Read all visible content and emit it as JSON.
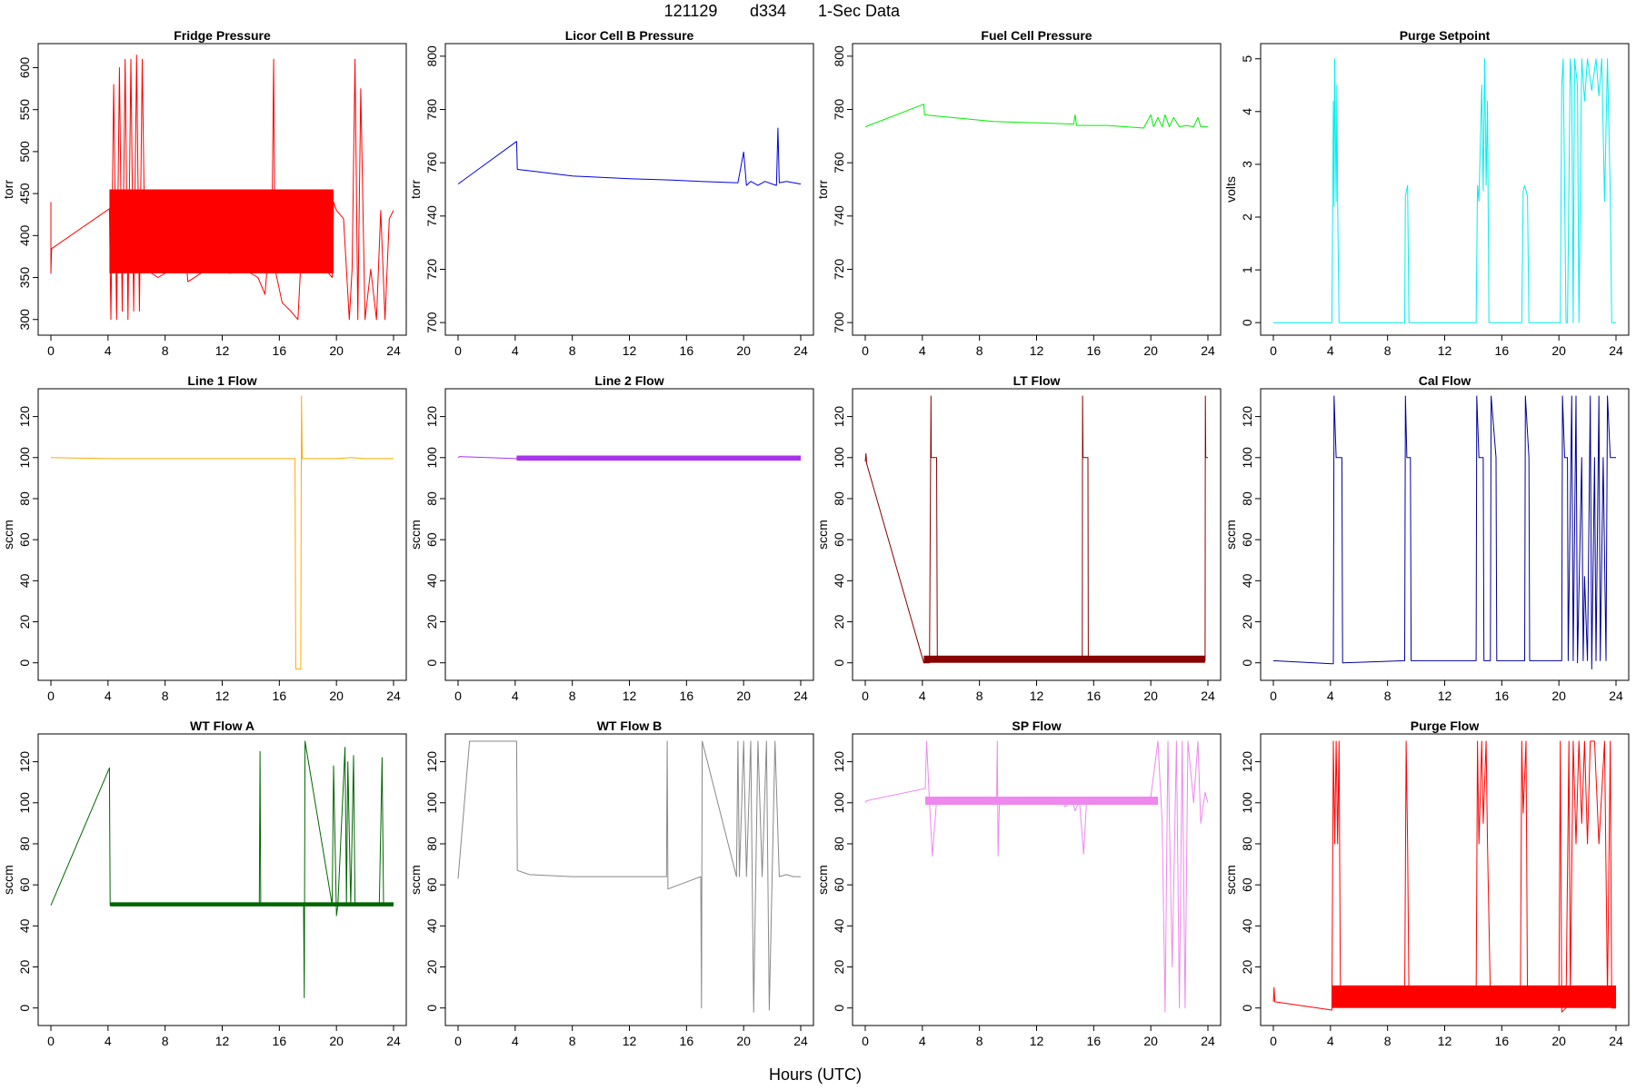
{
  "figure": {
    "title_parts": [
      "121129",
      "d334",
      "1-Sec Data"
    ],
    "xlabel": "Hours (UTC)"
  },
  "chart_data": [
    {
      "type": "line",
      "title": "Fridge Pressure",
      "ylabel": "torr",
      "color": "#ff0000",
      "xlim": [
        0,
        24
      ],
      "ylim": [
        290,
        620
      ],
      "xticks": [
        0,
        4,
        8,
        12,
        16,
        20,
        24
      ],
      "yticks": [
        300,
        350,
        400,
        450,
        500,
        550,
        600
      ],
      "x": [
        0,
        0,
        0.05,
        0.1,
        4.1,
        4.2,
        4.4,
        4.6,
        4.8,
        5.0,
        5.2,
        5.4,
        5.6,
        5.8,
        6.0,
        6.2,
        6.4,
        6.6,
        7.5,
        8.5,
        9.4,
        9.6,
        10.5,
        11.5,
        12.5,
        13.5,
        14.5,
        15.0,
        15.5,
        15.6,
        15.7,
        16.2,
        16.8,
        17.3,
        17.6,
        18.0,
        18.6,
        19.2,
        19.7,
        19.8,
        20.0,
        20.5,
        20.9,
        21.1,
        21.3,
        21.5,
        21.7,
        22.0,
        22.4,
        22.8,
        23.1,
        23.4,
        23.7,
        24.0
      ],
      "y": [
        440,
        355,
        385,
        385,
        432,
        300,
        580,
        300,
        600,
        310,
        610,
        300,
        610,
        310,
        615,
        310,
        610,
        360,
        350,
        360,
        380,
        345,
        355,
        360,
        355,
        360,
        350,
        330,
        440,
        610,
        360,
        320,
        310,
        300,
        400,
        360,
        360,
        360,
        350,
        440,
        430,
        420,
        300,
        360,
        610,
        300,
        575,
        300,
        360,
        300,
        430,
        300,
        420,
        430
      ],
      "band": {
        "from": 4.1,
        "to": 19.8,
        "low": 355,
        "high": 455
      }
    },
    {
      "type": "line",
      "title": "Licor Cell B Pressure",
      "ylabel": "torr",
      "color": "#0000dd",
      "xlim": [
        0,
        24
      ],
      "ylim": [
        698,
        802
      ],
      "xticks": [
        0,
        4,
        8,
        12,
        16,
        20,
        24
      ],
      "yticks": [
        700,
        720,
        740,
        760,
        780,
        800
      ],
      "x": [
        0,
        4.1,
        4.15,
        5,
        8,
        12,
        15,
        17,
        19.6,
        20.0,
        20.2,
        20.5,
        21,
        21.5,
        22,
        22.3,
        22.4,
        22.5,
        23,
        24
      ],
      "y": [
        752,
        768,
        757.5,
        757,
        755,
        754,
        753.5,
        753,
        752.5,
        764,
        751.5,
        753,
        751.5,
        753,
        752,
        751.5,
        773,
        752.5,
        753,
        752
      ]
    },
    {
      "type": "line",
      "title": "Fuel Cell Pressure",
      "ylabel": "torr",
      "color": "#00ee00",
      "xlim": [
        0,
        24
      ],
      "ylim": [
        698,
        802
      ],
      "xticks": [
        0,
        4,
        8,
        12,
        16,
        20,
        24
      ],
      "yticks": [
        700,
        720,
        740,
        760,
        780,
        800
      ],
      "x": [
        0,
        4.1,
        4.15,
        6,
        9,
        12,
        14.6,
        14.7,
        14.8,
        17,
        19.5,
        20.0,
        20.2,
        20.5,
        20.8,
        21,
        21.3,
        21.6,
        22,
        22.5,
        23,
        23.3,
        23.5,
        24
      ],
      "y": [
        773.5,
        782,
        778,
        777,
        775.5,
        775,
        774.5,
        778,
        774,
        774,
        773,
        778,
        773.5,
        777,
        773.5,
        778,
        773.5,
        777,
        773.5,
        774,
        773.5,
        777,
        773.5,
        773.5
      ]
    },
    {
      "type": "line",
      "title": "Purge Setpoint",
      "ylabel": "volts",
      "color": "#00eeee",
      "xlim": [
        0,
        24
      ],
      "ylim": [
        -0.1,
        5.15
      ],
      "xticks": [
        0,
        4,
        8,
        12,
        16,
        20,
        24
      ],
      "yticks": [
        0,
        1,
        2,
        3,
        4,
        5
      ],
      "x": [
        0,
        4.1,
        4.2,
        4.25,
        4.3,
        4.4,
        4.45,
        4.5,
        4.6,
        4.7,
        9.2,
        9.25,
        9.4,
        9.5,
        14.2,
        14.3,
        14.4,
        14.6,
        14.7,
        14.8,
        14.9,
        15.0,
        15.1,
        17.4,
        17.5,
        17.6,
        17.8,
        17.9,
        20.1,
        20.2,
        20.3,
        20.5,
        20.6,
        20.8,
        20.9,
        21.0,
        21.1,
        21.3,
        21.4,
        21.6,
        21.8,
        22.0,
        22.3,
        22.6,
        22.8,
        23.0,
        23.2,
        23.4,
        23.6,
        23.7,
        24
      ],
      "y": [
        0,
        0,
        4.2,
        2.2,
        5,
        2.3,
        4.5,
        2.3,
        0,
        0,
        0,
        2.4,
        2.6,
        0,
        0,
        2.6,
        2.3,
        4.5,
        2.5,
        5,
        2.6,
        4.2,
        0,
        0,
        2.5,
        2.6,
        2.4,
        0,
        0,
        4.5,
        5,
        0,
        0,
        5,
        4.5,
        0,
        5,
        4.5,
        0,
        5,
        4.2,
        5,
        4.4,
        5,
        4.3,
        5,
        2.3,
        5,
        2.4,
        0,
        0
      ]
    },
    {
      "type": "line",
      "title": "Line 1 Flow",
      "ylabel": "sccm",
      "color": "#ffaa00",
      "xlim": [
        0,
        24
      ],
      "ylim": [
        -5,
        130
      ],
      "xticks": [
        0,
        4,
        8,
        12,
        16,
        20,
        24
      ],
      "yticks": [
        0,
        20,
        40,
        60,
        80,
        100,
        120
      ],
      "x": [
        0,
        4,
        8,
        12,
        16,
        17.1,
        17.15,
        17.5,
        17.55,
        17.6,
        17.65,
        20,
        21,
        22,
        24
      ],
      "y": [
        100,
        99.5,
        99.5,
        99.5,
        99.5,
        99.5,
        -3,
        -3,
        130,
        99.5,
        99.5,
        99.5,
        100,
        99.5,
        99.5
      ]
    },
    {
      "type": "line",
      "title": "Line 2 Flow",
      "ylabel": "sccm",
      "color": "#aa33ee",
      "xlim": [
        0,
        24
      ],
      "ylim": [
        -5,
        130
      ],
      "xticks": [
        0,
        4,
        8,
        12,
        16,
        20,
        24
      ],
      "yticks": [
        0,
        20,
        40,
        60,
        80,
        100,
        120
      ],
      "x": [
        0,
        0.1,
        4.1,
        8,
        12,
        16,
        20,
        24
      ],
      "y": [
        100,
        100.5,
        99.5,
        99.8,
        99.8,
        99.8,
        99.8,
        99.8
      ],
      "band": {
        "from": 4.1,
        "to": 24,
        "low": 98.5,
        "high": 101
      }
    },
    {
      "type": "line",
      "title": "LT Flow",
      "ylabel": "sccm",
      "color": "#880000",
      "xlim": [
        0,
        24
      ],
      "ylim": [
        -5,
        130
      ],
      "xticks": [
        0,
        4,
        8,
        12,
        16,
        20,
        24
      ],
      "yticks": [
        0,
        20,
        40,
        60,
        80,
        100,
        120
      ],
      "x": [
        0,
        0.05,
        0.1,
        4.1,
        4.5,
        4.6,
        4.62,
        5.0,
        5.05,
        15.2,
        15.22,
        15.25,
        15.6,
        15.62,
        23.8,
        23.82,
        23.85,
        24
      ],
      "y": [
        98,
        102,
        97,
        0,
        0,
        130,
        100,
        100,
        1,
        1,
        130,
        100,
        100,
        1,
        1,
        130,
        100,
        100
      ],
      "band": {
        "from": 4.1,
        "to": 23.8,
        "low": 0,
        "high": 3.5
      }
    },
    {
      "type": "line",
      "title": "Cal Flow",
      "ylabel": "sccm",
      "color": "#000099",
      "xlim": [
        0,
        24
      ],
      "ylim": [
        -5,
        130
      ],
      "xticks": [
        0,
        4,
        8,
        12,
        16,
        20,
        24
      ],
      "yticks": [
        0,
        20,
        40,
        60,
        80,
        100,
        120
      ],
      "x": [
        0,
        4.1,
        4.2,
        4.25,
        4.4,
        4.5,
        4.8,
        4.85,
        9.2,
        9.25,
        9.35,
        9.6,
        9.65,
        14.2,
        14.25,
        14.4,
        14.7,
        14.75,
        15.2,
        15.25,
        15.6,
        15.65,
        17.6,
        17.65,
        17.9,
        17.95,
        20.2,
        20.25,
        20.4,
        20.6,
        20.65,
        20.9,
        21.0,
        21.2,
        21.3,
        21.6,
        21.7,
        21.8,
        22.0,
        22.2,
        22.3,
        22.5,
        22.6,
        22.8,
        22.9,
        23.1,
        23.3,
        23.4,
        23.6,
        23.7,
        24
      ],
      "y": [
        1,
        -0.5,
        -0.5,
        130,
        100,
        100,
        100,
        0,
        1,
        130,
        100,
        100,
        1,
        1,
        130,
        100,
        100,
        1,
        1,
        130,
        100,
        1,
        1,
        130,
        100,
        1,
        1,
        130,
        100,
        100,
        1,
        130,
        1,
        130,
        0,
        100,
        1,
        42,
        1,
        130,
        -3,
        100,
        1,
        130,
        1,
        100,
        1,
        130,
        100,
        100,
        100
      ]
    },
    {
      "type": "line",
      "title": "WT Flow A",
      "ylabel": "sccm",
      "color": "#006600",
      "xlim": [
        0,
        24
      ],
      "ylim": [
        -5,
        130
      ],
      "xticks": [
        0,
        4,
        8,
        12,
        16,
        20,
        24
      ],
      "yticks": [
        0,
        20,
        40,
        60,
        80,
        100,
        120
      ],
      "x": [
        0,
        4.1,
        4.15,
        8,
        12,
        14.6,
        14.65,
        14.7,
        17.7,
        17.75,
        17.8,
        19.7,
        19.8,
        20.0,
        20.1,
        20.6,
        20.7,
        20.8,
        21.0,
        21.2,
        21.3,
        21.5,
        22.0,
        23.0,
        23.2,
        23.3,
        24
      ],
      "y": [
        50,
        117,
        50,
        50.5,
        50,
        50,
        125,
        50,
        50,
        5,
        130,
        50,
        118,
        45,
        50,
        127,
        50,
        120,
        50,
        123,
        50,
        51,
        50,
        50,
        122,
        50,
        50
      ],
      "band": {
        "from": 4.15,
        "to": 24,
        "low": 49.5,
        "high": 51.5
      }
    },
    {
      "type": "line",
      "title": "WT Flow B",
      "ylabel": "sccm",
      "color": "#888888",
      "xlim": [
        0,
        24
      ],
      "ylim": [
        -5,
        130
      ],
      "xticks": [
        0,
        4,
        8,
        12,
        16,
        20,
        24
      ],
      "yticks": [
        0,
        20,
        40,
        60,
        80,
        100,
        120
      ],
      "x": [
        0,
        0.8,
        4.1,
        4.15,
        5,
        8,
        12,
        14.6,
        14.65,
        14.7,
        17.0,
        17.05,
        17.1,
        19.5,
        19.6,
        19.7,
        20.0,
        20.2,
        20.5,
        20.7,
        21.0,
        21.3,
        21.6,
        21.8,
        22.2,
        22.5,
        23.0,
        23.5,
        24
      ],
      "y": [
        63,
        130,
        130,
        67,
        65,
        64,
        64,
        64,
        130,
        58,
        64,
        0,
        130,
        64,
        130,
        64,
        130,
        64,
        130,
        -2,
        130,
        64,
        130,
        -1,
        130,
        64,
        65,
        64,
        64
      ]
    },
    {
      "type": "line",
      "title": "SP Flow",
      "ylabel": "sccm",
      "color": "#ee88ee",
      "xlim": [
        0,
        24
      ],
      "ylim": [
        -5,
        130
      ],
      "xticks": [
        0,
        4,
        8,
        12,
        16,
        20,
        24
      ],
      "yticks": [
        0,
        20,
        40,
        60,
        80,
        100,
        120
      ],
      "x": [
        0,
        0.1,
        4.2,
        4.3,
        4.5,
        4.7,
        5,
        8,
        9.2,
        9.25,
        9.3,
        9.4,
        12,
        13.8,
        14.0,
        14.5,
        14.7,
        15.0,
        15.3,
        15.5,
        16,
        18.0,
        19.5,
        20.0,
        20.5,
        20.8,
        21.0,
        21.2,
        21.5,
        21.8,
        22.0,
        22.2,
        22.4,
        22.6,
        23.0,
        23.3,
        23.5,
        23.8,
        24
      ],
      "y": [
        100,
        101,
        107,
        130,
        100,
        74,
        101,
        101,
        101,
        130,
        74,
        101,
        101,
        101,
        98,
        101,
        96,
        101,
        75,
        101,
        101,
        101,
        102,
        103,
        130,
        90,
        -2,
        130,
        20,
        130,
        0,
        130,
        0,
        130,
        100,
        130,
        90,
        105,
        100
      ],
      "band": {
        "from": 4.2,
        "to": 20.5,
        "low": 99,
        "high": 103
      }
    },
    {
      "type": "line",
      "title": "Purge Flow",
      "ylabel": "sccm",
      "color": "#ff0000",
      "xlim": [
        0,
        24
      ],
      "ylim": [
        -5,
        130
      ],
      "xticks": [
        0,
        4,
        8,
        12,
        16,
        20,
        24
      ],
      "yticks": [
        0,
        20,
        40,
        60,
        80,
        100,
        120
      ],
      "x": [
        0,
        0.05,
        0.1,
        4.1,
        4.2,
        4.3,
        4.4,
        4.5,
        4.6,
        4.7,
        9.2,
        9.3,
        9.4,
        9.5,
        14.2,
        14.3,
        14.4,
        14.6,
        14.7,
        14.9,
        15.0,
        15.2,
        17.3,
        17.4,
        17.5,
        17.7,
        17.8,
        20.0,
        20.1,
        20.2,
        20.5,
        20.7,
        20.8,
        21.0,
        21.2,
        21.4,
        21.6,
        21.8,
        22.0,
        22.2,
        22.5,
        22.8,
        23.2,
        23.4,
        23.6,
        23.7,
        24
      ],
      "y": [
        3,
        10,
        3,
        -1,
        130,
        80,
        130,
        80,
        130,
        5,
        5,
        130,
        80,
        5,
        5,
        130,
        80,
        130,
        90,
        130,
        80,
        5,
        5,
        130,
        95,
        130,
        5,
        5,
        130,
        -2,
        0,
        130,
        5,
        130,
        80,
        130,
        90,
        130,
        80,
        130,
        130,
        80,
        130,
        5,
        130,
        0,
        0
      ],
      "band": {
        "from": 4.1,
        "to": 24,
        "low": 0,
        "high": 11
      }
    }
  ]
}
